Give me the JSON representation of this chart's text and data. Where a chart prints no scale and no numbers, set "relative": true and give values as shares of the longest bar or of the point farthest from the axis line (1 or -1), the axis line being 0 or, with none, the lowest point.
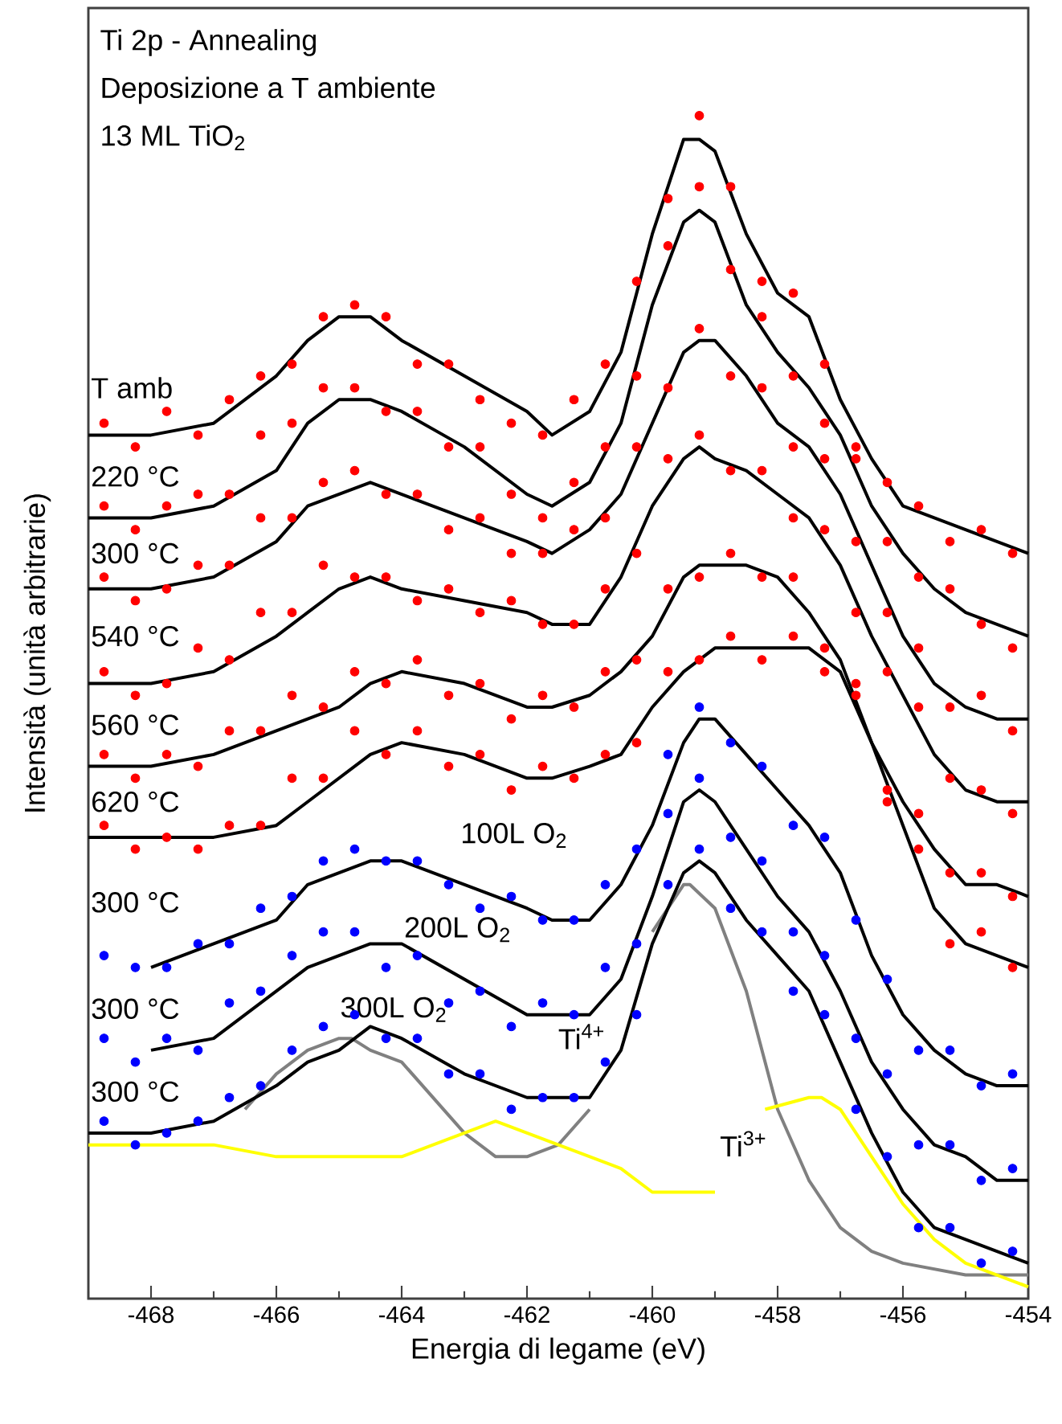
{
  "chart_data": {
    "type": "line",
    "title": "Ti 2p - Annealing",
    "subtitle": "Deposizione a T ambiente",
    "xlabel": "Energia di legame (eV)",
    "ylabel": "Intensità (unità arbitrarie)",
    "relative": true,
    "marker": "circle",
    "xlim": [
      -469,
      -454
    ],
    "xticks": [
      {
        "value": -469,
        "label": null
      },
      -468,
      {
        "value": -467,
        "label": null
      },
      -466,
      {
        "value": -465,
        "label": null
      },
      -464,
      {
        "value": -463,
        "label": null
      },
      -462,
      {
        "value": -461,
        "label": null
      },
      -460,
      {
        "value": -459,
        "label": null
      },
      -458,
      {
        "value": -457,
        "label": null
      },
      -456,
      {
        "value": -455,
        "label": null
      },
      -454
    ],
    "annotations": [
      "13 ML TiO$_{2}$",
      "100L O$_{2}$",
      "200L O$_{2}$",
      "300L O$_{2}$",
      "Ti$^{4+}$",
      "Ti$^{3+}$"
    ],
    "x": [
      -469,
      -468,
      -467,
      -466,
      -465.5,
      -465,
      -464.5,
      -464,
      -463,
      -462,
      -461.6,
      -461,
      -460.5,
      -460,
      -459.5,
      -459.25,
      -459,
      -458.5,
      -458,
      -457.5,
      -457,
      -456.5,
      -456,
      -455.5,
      -455,
      -454.5,
      -454
    ],
    "series": [
      {
        "marker": "none",
        "color": "#808080",
        "x": [
          -466.5,
          -466,
          -465.5,
          -465,
          -464.8,
          -464.5,
          -464,
          -463.5,
          -463,
          -462.5,
          -462,
          -461.5,
          -461,
          -460.5,
          -460,
          -459.5,
          -459.4,
          -459,
          -458.5,
          -458,
          -457.5,
          -457,
          -456.5,
          -456,
          -455,
          -454
        ],
        "values": [
          0.16,
          0.19,
          0.21,
          0.22,
          0.22,
          0.21,
          0.2,
          0.17,
          0.14,
          0.12,
          0.12,
          0.13,
          0.16,
          null,
          0.31,
          0.35,
          0.35,
          0.33,
          0.26,
          0.16,
          0.1,
          0.06,
          0.04,
          0.03,
          0.02,
          0.02
        ]
      },
      {
        "marker": "none",
        "color": "#ffff00",
        "x": [
          -469,
          -468,
          -467,
          -466,
          -465,
          -464,
          -463.5,
          -463,
          -462.5,
          -462,
          -461.5,
          -461,
          -460.5,
          -460,
          -459.5,
          -459,
          -458.7,
          -458.2,
          -457.5,
          -457.3,
          -457,
          -456.5,
          -456,
          -455.5,
          -455,
          -454.5,
          -454
        ],
        "values": [
          0.13,
          0.13,
          0.13,
          0.12,
          0.12,
          0.12,
          0.13,
          0.14,
          0.15,
          0.14,
          0.13,
          0.12,
          0.11,
          0.09,
          0.09,
          0.09,
          null,
          0.16,
          0.17,
          0.17,
          0.16,
          0.12,
          0.08,
          0.05,
          0.03,
          0.02,
          0.01
        ]
      },
      {
        "marker": "none",
        "name": "T amb",
        "color": "#000000",
        "values": [
          0.73,
          0.73,
          0.74,
          0.78,
          0.81,
          0.83,
          0.83,
          0.81,
          0.78,
          0.75,
          0.73,
          0.75,
          0.8,
          0.9,
          0.98,
          0.98,
          0.97,
          0.9,
          0.85,
          0.83,
          0.76,
          0.71,
          0.67,
          0.66,
          0.65,
          0.64,
          0.63
        ]
      },
      {
        "marker": "none",
        "name": "220 °C",
        "color": "#000000",
        "values": [
          0.66,
          0.66,
          0.67,
          0.7,
          0.74,
          0.76,
          0.76,
          0.75,
          0.72,
          0.68,
          0.67,
          0.69,
          0.74,
          0.84,
          0.91,
          0.92,
          0.91,
          0.84,
          0.8,
          0.77,
          0.73,
          0.67,
          0.63,
          0.6,
          0.58,
          0.57,
          0.56
        ]
      },
      {
        "marker": "none",
        "name": "300 °C",
        "color": "#000000",
        "values": [
          0.6,
          0.6,
          0.61,
          0.64,
          0.67,
          0.68,
          0.69,
          0.68,
          0.66,
          0.64,
          0.63,
          0.65,
          0.68,
          0.74,
          0.8,
          0.81,
          0.81,
          0.78,
          0.74,
          0.72,
          0.68,
          0.62,
          0.56,
          0.52,
          0.5,
          0.49,
          0.49
        ]
      },
      {
        "marker": "none",
        "name": "540 °C",
        "color": "#000000",
        "values": [
          0.52,
          0.52,
          0.53,
          0.56,
          0.58,
          0.6,
          0.61,
          0.6,
          0.59,
          0.58,
          0.57,
          0.57,
          0.61,
          0.67,
          0.71,
          0.72,
          0.71,
          0.7,
          0.68,
          0.66,
          0.62,
          0.56,
          0.51,
          0.46,
          0.43,
          0.42,
          0.42
        ]
      },
      {
        "marker": "none",
        "name": "560 °C",
        "color": "#000000",
        "values": [
          0.45,
          0.45,
          0.46,
          0.48,
          0.49,
          0.5,
          0.52,
          0.53,
          0.52,
          0.5,
          0.5,
          0.51,
          0.53,
          0.56,
          0.61,
          0.62,
          0.62,
          0.62,
          0.61,
          0.58,
          0.54,
          0.47,
          0.42,
          0.38,
          0.35,
          0.35,
          0.34
        ]
      },
      {
        "marker": "none",
        "name": "620 °C",
        "color": "#000000",
        "values": [
          0.39,
          0.39,
          0.39,
          0.4,
          0.42,
          0.44,
          0.46,
          0.47,
          0.46,
          0.44,
          0.44,
          0.45,
          0.46,
          0.5,
          0.53,
          0.54,
          0.55,
          0.55,
          0.55,
          0.55,
          0.53,
          0.47,
          0.4,
          0.33,
          0.3,
          0.29,
          0.28
        ]
      },
      {
        "marker": "none",
        "name": "300 °C",
        "color": "#000000",
        "values": [
          null,
          0.28,
          0.3,
          0.32,
          0.35,
          0.36,
          0.37,
          0.37,
          0.35,
          0.33,
          0.32,
          0.32,
          0.35,
          0.4,
          0.47,
          0.49,
          0.49,
          0.46,
          0.43,
          0.4,
          0.36,
          0.29,
          0.24,
          0.21,
          0.19,
          0.18,
          0.18
        ]
      },
      {
        "marker": "none",
        "name": "300 °C",
        "color": "#000000",
        "values": [
          null,
          0.21,
          0.22,
          0.26,
          0.28,
          0.29,
          0.3,
          0.3,
          0.27,
          0.24,
          0.24,
          0.24,
          0.27,
          0.34,
          0.42,
          0.43,
          0.42,
          0.38,
          0.34,
          0.31,
          0.26,
          0.2,
          0.16,
          0.13,
          0.12,
          0.1,
          0.1
        ]
      },
      {
        "marker": "none",
        "name": "300 °C",
        "color": "#000000",
        "values": [
          0.14,
          0.14,
          0.15,
          0.18,
          0.2,
          0.21,
          0.23,
          0.22,
          0.19,
          0.17,
          0.17,
          0.17,
          0.21,
          0.3,
          0.36,
          0.37,
          0.36,
          0.32,
          0.29,
          0.26,
          0.2,
          0.14,
          0.09,
          0.06,
          0.05,
          0.04,
          0.03
        ]
      },
      {
        "type": "scatter",
        "color": "#ff0000",
        "x": [
          -468.75,
          -468.25,
          -467.75,
          -467.25,
          -466.75,
          -466.25,
          -465.75,
          -465.25,
          -464.75,
          -464.25,
          -463.75,
          -463.25,
          -462.75,
          -462.25,
          -461.75,
          -461.25,
          -460.75,
          -460.25,
          -459.75,
          -459.25,
          -458.75,
          -458.25,
          -457.75,
          -457.25,
          -456.75,
          -456.25,
          -455.75,
          -455.25,
          -454.75,
          -454.25
        ],
        "values": [
          0.74,
          0.72,
          0.75,
          0.73,
          0.76,
          0.78,
          0.79,
          0.83,
          0.84,
          0.83,
          0.79,
          0.79,
          0.76,
          0.74,
          0.73,
          0.76,
          0.79,
          0.86,
          0.93,
          1.0,
          0.94,
          0.86,
          0.85,
          0.79,
          0.72,
          0.69,
          0.67,
          0.64,
          0.65,
          0.63
        ]
      },
      {
        "type": "scatter",
        "color": "#ff0000",
        "x": [
          -468.75,
          -468.25,
          -467.75,
          -467.25,
          -466.75,
          -466.25,
          -465.75,
          -465.25,
          -464.75,
          -464.25,
          -463.75,
          -463.25,
          -462.75,
          -462.25,
          -461.75,
          -461.25,
          -460.75,
          -460.25,
          -459.75,
          -459.25,
          -458.75,
          -458.25,
          -457.75,
          -457.25,
          -456.75,
          -456.25,
          -455.75,
          -455.25,
          -454.75,
          -454.25
        ],
        "values": [
          0.67,
          0.65,
          0.67,
          0.68,
          0.68,
          0.73,
          0.74,
          0.77,
          0.77,
          0.75,
          0.75,
          0.72,
          0.72,
          0.68,
          0.66,
          0.69,
          0.72,
          0.78,
          0.89,
          0.94,
          0.87,
          0.83,
          0.78,
          0.74,
          0.71,
          0.64,
          0.61,
          0.6,
          0.57,
          0.55
        ]
      },
      {
        "type": "scatter",
        "color": "#ff0000",
        "x": [
          -468.75,
          -468.25,
          -467.75,
          -467.25,
          -466.75,
          -466.25,
          -465.75,
          -465.25,
          -464.75,
          -464.25,
          -463.75,
          -463.25,
          -462.75,
          -462.25,
          -461.75,
          -461.25,
          -460.75,
          -460.25,
          -459.75,
          -459.25,
          -458.75,
          -458.25,
          -457.75,
          -457.25,
          -456.75,
          -456.25,
          -455.75,
          -455.25,
          -454.75,
          -454.25
        ],
        "values": [
          0.61,
          0.59,
          0.6,
          0.62,
          0.62,
          0.66,
          0.66,
          0.69,
          0.7,
          0.68,
          0.68,
          0.65,
          0.66,
          0.63,
          0.63,
          0.65,
          0.66,
          0.72,
          0.77,
          0.82,
          0.78,
          0.77,
          0.72,
          0.71,
          0.64,
          0.58,
          0.55,
          0.5,
          0.51,
          0.48
        ]
      },
      {
        "type": "scatter",
        "color": "#ff0000",
        "x": [
          -468.75,
          -468.25,
          -467.75,
          -467.25,
          -466.75,
          -466.25,
          -465.75,
          -465.25,
          -464.75,
          -464.25,
          -463.75,
          -463.25,
          -462.75,
          -462.25,
          -461.75,
          -461.25,
          -460.75,
          -460.25,
          -459.75,
          -459.25,
          -458.75,
          -458.25,
          -457.75,
          -457.25,
          -456.75,
          -456.25,
          -455.75,
          -455.25,
          -454.75,
          -454.25
        ],
        "values": [
          0.53,
          0.51,
          0.52,
          0.55,
          0.54,
          0.58,
          0.58,
          0.62,
          0.61,
          0.61,
          0.59,
          0.6,
          0.58,
          0.59,
          0.57,
          0.57,
          0.6,
          0.63,
          0.71,
          0.73,
          0.7,
          0.7,
          0.66,
          0.65,
          0.58,
          0.53,
          0.5,
          0.44,
          0.43,
          0.41
        ]
      },
      {
        "type": "scatter",
        "color": "#ff0000",
        "x": [
          -468.75,
          -468.25,
          -467.75,
          -467.25,
          -466.75,
          -466.25,
          -465.75,
          -465.25,
          -464.75,
          -464.25,
          -463.75,
          -463.25,
          -462.75,
          -462.25,
          -461.75,
          -461.25,
          -460.75,
          -460.25,
          -459.75,
          -459.25,
          -458.75,
          -458.25,
          -457.75,
          -457.25,
          -456.75,
          -456.25,
          -455.75,
          -455.25,
          -454.75,
          -454.25
        ],
        "values": [
          0.46,
          0.44,
          0.46,
          0.45,
          0.48,
          0.48,
          0.51,
          0.5,
          0.53,
          0.52,
          0.54,
          0.51,
          0.52,
          0.49,
          0.51,
          0.5,
          0.53,
          0.54,
          0.6,
          0.61,
          0.63,
          0.61,
          0.61,
          0.55,
          0.52,
          0.43,
          0.41,
          0.36,
          0.36,
          0.34
        ]
      },
      {
        "type": "scatter",
        "color": "#ff0000",
        "x": [
          -468.75,
          -468.25,
          -467.75,
          -467.25,
          -466.75,
          -466.25,
          -465.75,
          -465.25,
          -464.75,
          -464.25,
          -463.75,
          -463.25,
          -462.75,
          -462.25,
          -461.75,
          -461.25,
          -460.75,
          -460.25,
          -459.75,
          -459.25,
          -458.75,
          -458.25,
          -457.75,
          -457.25,
          -456.75,
          -456.25,
          -455.75,
          -455.25,
          -454.75,
          -454.25
        ],
        "values": [
          0.4,
          0.38,
          0.39,
          0.38,
          0.4,
          0.4,
          0.44,
          0.44,
          0.48,
          0.46,
          0.48,
          0.45,
          0.46,
          0.43,
          0.45,
          0.44,
          0.46,
          0.47,
          0.53,
          0.54,
          0.56,
          0.54,
          0.56,
          0.53,
          0.51,
          0.42,
          0.38,
          0.3,
          0.31,
          0.28
        ]
      },
      {
        "type": "scatter",
        "color": "#0000ff",
        "x": [
          -468.75,
          -468.25,
          -467.75,
          -467.25,
          -466.75,
          -466.25,
          -465.75,
          -465.25,
          -464.75,
          -464.25,
          -463.75,
          -463.25,
          -462.75,
          -462.25,
          -461.75,
          -461.25,
          -460.75,
          -460.25,
          -459.75,
          -459.25,
          -458.75,
          -458.25,
          -457.75,
          -457.25,
          -456.75,
          -456.25,
          -455.75,
          -455.25,
          -454.75,
          -454.25
        ],
        "values": [
          0.29,
          0.28,
          0.28,
          0.3,
          0.3,
          0.33,
          0.34,
          0.37,
          0.38,
          0.37,
          0.37,
          0.35,
          0.33,
          0.34,
          0.32,
          0.32,
          0.35,
          0.38,
          0.46,
          0.5,
          0.47,
          0.45,
          0.4,
          0.39,
          0.32,
          0.27,
          0.21,
          0.21,
          0.18,
          0.19
        ]
      },
      {
        "type": "scatter",
        "color": "#0000ff",
        "x": [
          -468.75,
          -468.25,
          -467.75,
          -467.25,
          -466.75,
          -466.25,
          -465.75,
          -465.25,
          -464.75,
          -464.25,
          -463.75,
          -463.25,
          -462.75,
          -462.25,
          -461.75,
          -461.25,
          -460.75,
          -460.25,
          -459.75,
          -459.25,
          -458.75,
          -458.25,
          -457.75,
          -457.25,
          -456.75,
          -456.25,
          -455.75,
          -455.25,
          -454.75,
          -454.25
        ],
        "values": [
          0.22,
          0.2,
          0.22,
          0.21,
          0.25,
          0.26,
          0.29,
          0.31,
          0.31,
          0.28,
          0.29,
          0.25,
          0.26,
          0.23,
          0.25,
          0.24,
          0.28,
          0.3,
          0.41,
          0.44,
          0.39,
          0.37,
          0.31,
          0.29,
          0.22,
          0.19,
          0.13,
          0.13,
          0.1,
          0.11
        ]
      },
      {
        "type": "scatter",
        "color": "#0000ff",
        "x": [
          -468.75,
          -468.25,
          -467.75,
          -467.25,
          -466.75,
          -466.25,
          -465.75,
          -465.25,
          -464.75,
          -464.25,
          -463.75,
          -463.25,
          -462.75,
          -462.25,
          -461.75,
          -461.25,
          -460.75,
          -460.25,
          -459.75,
          -459.25,
          -458.75,
          -458.25,
          -457.75,
          -457.25,
          -456.75,
          -456.25,
          -455.75,
          -455.25,
          -454.75,
          -454.25
        ],
        "values": [
          0.15,
          0.13,
          0.14,
          0.15,
          0.17,
          0.18,
          0.21,
          0.23,
          0.24,
          0.22,
          0.22,
          0.19,
          0.19,
          0.16,
          0.17,
          0.17,
          0.2,
          0.24,
          0.35,
          0.38,
          0.33,
          0.31,
          0.26,
          0.24,
          0.16,
          0.12,
          0.06,
          0.06,
          0.03,
          0.04
        ]
      }
    ]
  }
}
